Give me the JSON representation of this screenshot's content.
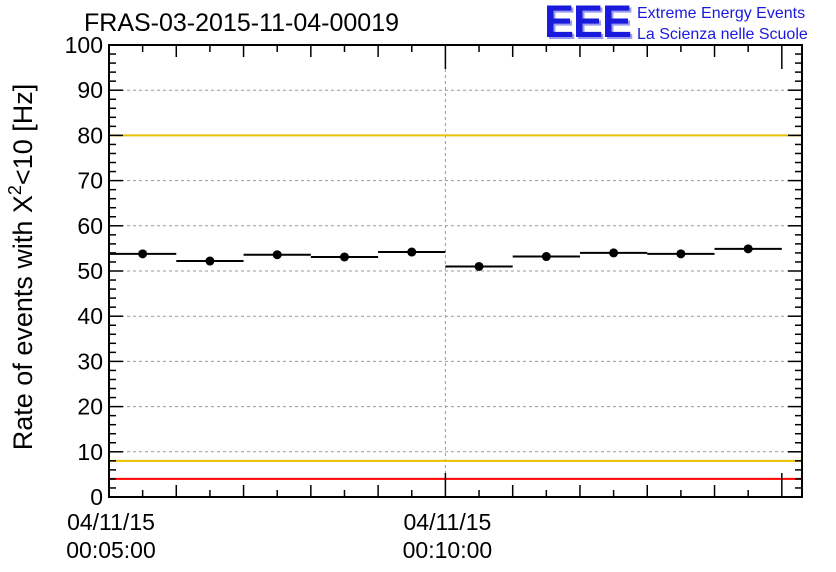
{
  "chart_data": {
    "type": "scatter",
    "title": "FRAS-03-2015-11-04-00019",
    "ylabel": {
      "pre": "Rate of events with X",
      "sup": "2",
      "post": "<10 [Hz]"
    },
    "ylim": [
      0,
      100
    ],
    "y_ticks": [
      "0",
      "10",
      "20",
      "30",
      "40",
      "50",
      "60",
      "70",
      "80",
      "90",
      "100"
    ],
    "x_range_minutes": [
      0,
      10.3
    ],
    "x_tick_labels": [
      {
        "minute": 0,
        "date": "04/11/15",
        "time": "00:05:00"
      },
      {
        "minute": 5,
        "date": "04/11/15",
        "time": "00:10:00"
      }
    ],
    "grid": true,
    "bin_width_minutes": 1.0,
    "points": [
      {
        "x": 0.5,
        "y": 53.8
      },
      {
        "x": 1.5,
        "y": 52.2
      },
      {
        "x": 2.5,
        "y": 53.6
      },
      {
        "x": 3.5,
        "y": 53.1
      },
      {
        "x": 4.5,
        "y": 54.2
      },
      {
        "x": 5.5,
        "y": 51.0
      },
      {
        "x": 6.5,
        "y": 53.2
      },
      {
        "x": 7.5,
        "y": 54.0
      },
      {
        "x": 8.5,
        "y": 53.8
      },
      {
        "x": 9.5,
        "y": 54.9
      }
    ],
    "reference_lines": [
      {
        "y": 100,
        "color": "#ff0000"
      },
      {
        "y": 80,
        "color": "#e8c000"
      },
      {
        "y": 8,
        "color": "#e8c000"
      },
      {
        "y": 4,
        "color": "#ff0000"
      }
    ]
  },
  "logo": {
    "mark": "EEE",
    "line1": "Extreme Energy Events",
    "line2": "La Scienza nelle Scuole",
    "color": "#1a1adc"
  }
}
